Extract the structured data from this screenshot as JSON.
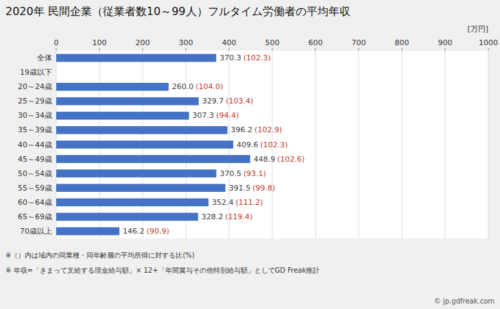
{
  "chart_data": {
    "type": "bar",
    "orientation": "horizontal",
    "title": "2020年 民間企業（従業者数10～99人）フルタイム労働者の平均年収",
    "xlabel": "[万円]",
    "categories": [
      "全体",
      "19歳以下",
      "20～24歳",
      "25～29歳",
      "30～34歳",
      "35～39歳",
      "40～44歳",
      "45～49歳",
      "50～54歳",
      "55～59歳",
      "60～64歳",
      "65～69歳",
      "70歳以上"
    ],
    "values": [
      370.3,
      0,
      260.0,
      329.7,
      307.3,
      396.2,
      409.6,
      448.9,
      370.5,
      391.5,
      352.4,
      328.2,
      146.2
    ],
    "value_labels": [
      "370.3",
      null,
      "260.0",
      "329.7",
      "307.3",
      "396.2",
      "409.6",
      "448.9",
      "370.5",
      "391.5",
      "352.4",
      "328.2",
      "146.2"
    ],
    "ratio_labels": [
      "(102.3)",
      null,
      "(104.0)",
      "(103.4)",
      "(94.4)",
      "(102.9)",
      "(102.3)",
      "(102.6)",
      "(93.1)",
      "(99.8)",
      "(111.2)",
      "(119.4)",
      "(90.9)"
    ],
    "color": "#4472C4",
    "ratio_color": "#C0392B",
    "data_labels": true,
    "xlim": [
      0,
      1000
    ],
    "xticks": [
      0,
      100,
      200,
      300,
      400,
      500,
      600,
      700,
      800,
      900,
      1000
    ],
    "grid": true,
    "annotations": [
      "※（）内は域内の同業種・同年齢層の平均所得に対する比(%)",
      "※ 年収=「きまって支給する現金給与額」× 12+「年間賞与その他特別給与額」としてGD Freak推計",
      "© jp.gdfreak.com"
    ]
  }
}
